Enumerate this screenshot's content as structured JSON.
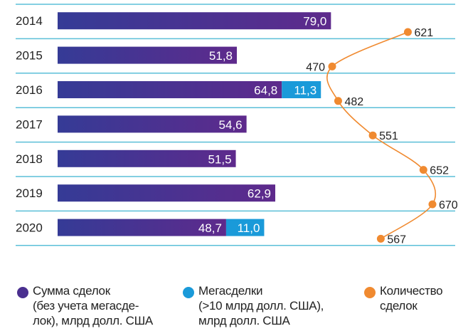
{
  "chart_data": {
    "type": "bar",
    "orientation": "horizontal",
    "stacked": true,
    "categories": [
      "2014",
      "2015",
      "2016",
      "2017",
      "2018",
      "2019",
      "2020"
    ],
    "series": [
      {
        "name": "Сумма сделок (без учета мегасделок), млрд долл. США",
        "kind": "bar",
        "color": "#5B2D8E",
        "color_start": "#353B96",
        "values": [
          79.0,
          51.8,
          64.8,
          54.6,
          51.5,
          62.9,
          48.7
        ],
        "labels": [
          "79,0",
          "51,8",
          "64,8",
          "54,6",
          "51,5",
          "62,9",
          "48,7"
        ]
      },
      {
        "name": "Мегасделки (>10 млрд долл. США), млрд долл. США",
        "kind": "bar",
        "color": "#1A9AD9",
        "values": [
          null,
          null,
          11.3,
          null,
          null,
          null,
          11.0
        ],
        "labels": [
          "",
          "",
          "11,3",
          "",
          "",
          "",
          "11,0"
        ]
      },
      {
        "name": "Количество сделок",
        "kind": "line",
        "color": "#F08A30",
        "values": [
          621,
          470,
          482,
          551,
          652,
          670,
          567
        ],
        "labels": [
          "621",
          "470",
          "482",
          "551",
          "652",
          "670",
          "567"
        ]
      }
    ],
    "title": "",
    "xlabel": "",
    "ylabel": "",
    "grid": true,
    "legend_position": "bottom"
  },
  "legend": [
    {
      "text": "Сумма сделок\n(без учета мегасде-\nлок), млрд долл. США",
      "color": "#4A2F8F"
    },
    {
      "text": "Мегасделки\n(>10 млрд долл. США),\nмлрд долл. США",
      "color": "#1A9AD9"
    },
    {
      "text": "Количество\nсделок",
      "color": "#F08A30"
    }
  ]
}
